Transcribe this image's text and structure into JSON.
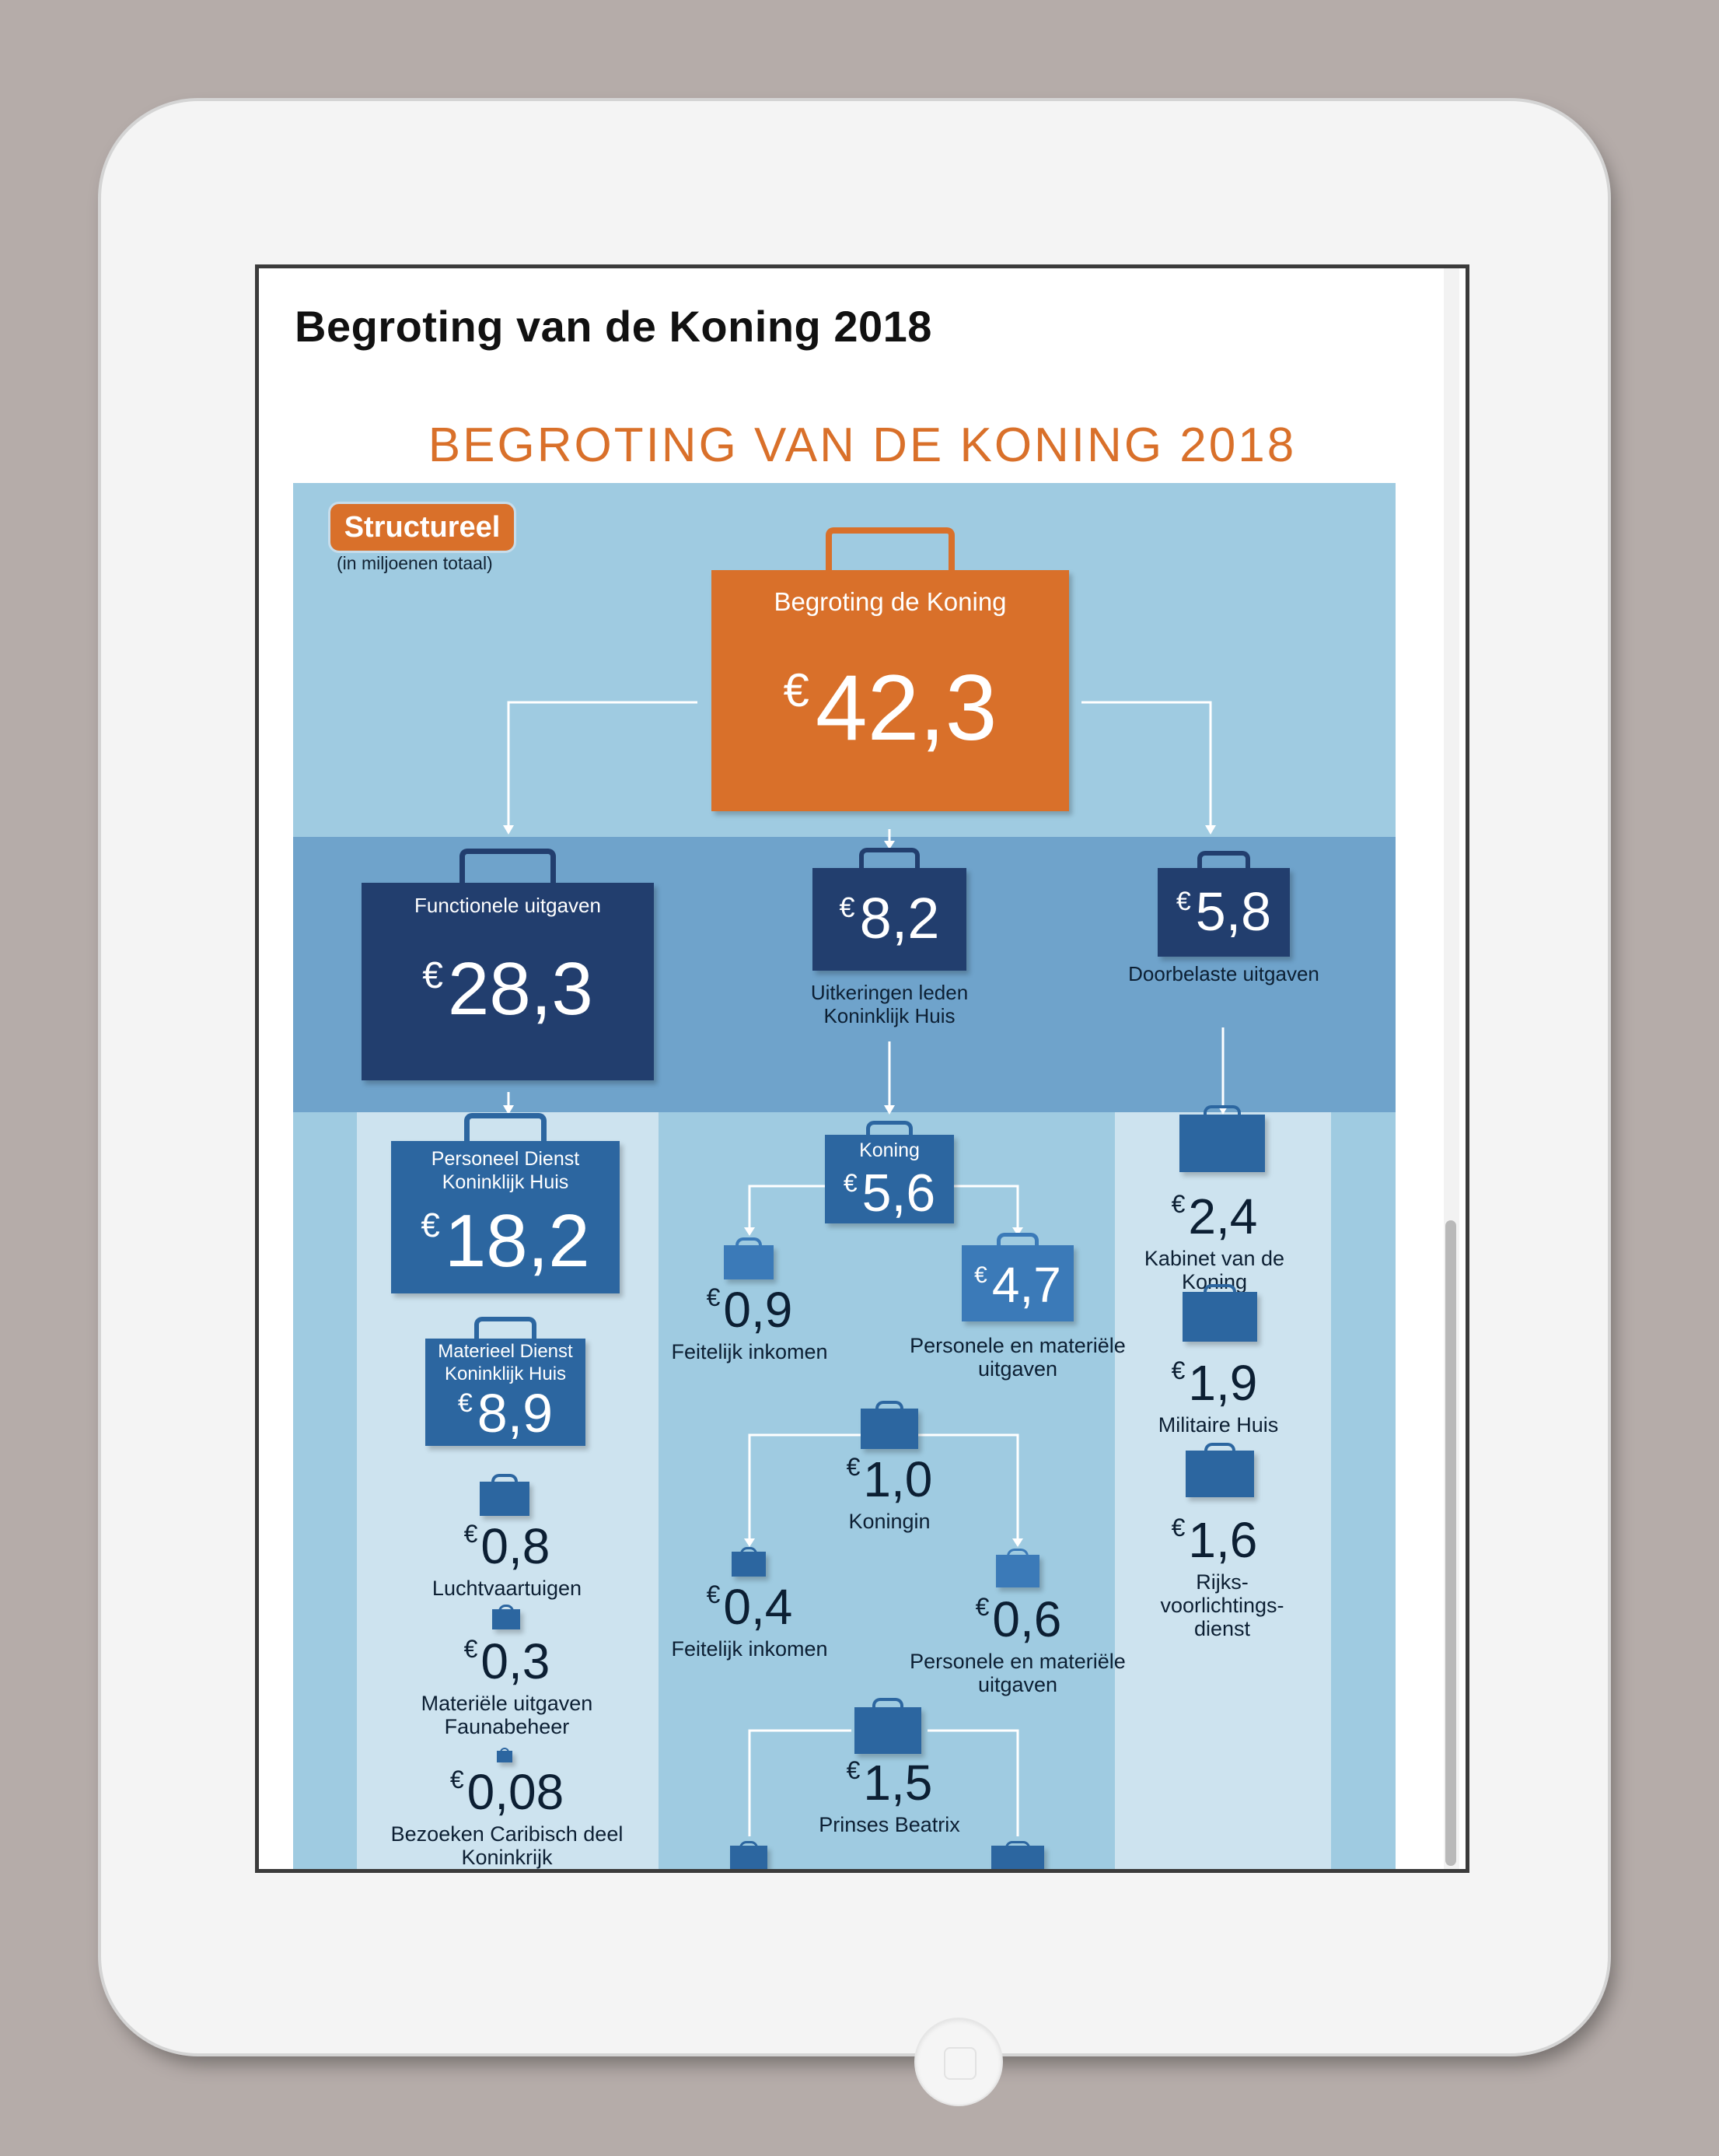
{
  "device": {
    "camera": "camera-dot",
    "home_button": "home-button"
  },
  "page": {
    "title": "Begroting van de Koning 2018"
  },
  "infographic": {
    "title": "BEGROTING VAN DE KONING 2018",
    "badge": "Structureel",
    "badge_sub": "(in miljoenen totaal)",
    "currency": "€",
    "colors": {
      "orange": "#d9702a",
      "navy": "#223e6e",
      "blue": "#2c66a0",
      "light_blue": "#9fcbe1",
      "band_blue": "#6fa3cb"
    },
    "total": {
      "label": "Begroting de Koning",
      "value": "42,3"
    },
    "level1": {
      "functional": {
        "label": "Functionele uitgaven",
        "value": "28,3"
      },
      "benefits": {
        "value": "8,2",
        "label": "Uitkeringen leden Koninklijk Huis"
      },
      "charged": {
        "value": "5,8",
        "label": "Doorbelaste uitgaven"
      }
    },
    "left": {
      "personnel": {
        "label": "Personeel Dienst Koninklijk Huis",
        "value": "18,2"
      },
      "material": {
        "label": "Materieel Dienst Koninklijk Huis",
        "value": "8,9"
      },
      "aircraft": {
        "value": "0,8",
        "label": "Luchtvaartuigen"
      },
      "fauna": {
        "value": "0,3",
        "label": "Materiële uitgaven Faunabeheer"
      },
      "caribbean": {
        "value": "0,08",
        "label": "Bezoeken Caribisch deel Koninkrijk"
      }
    },
    "middle": {
      "king": {
        "label": "Koning",
        "value": "5,6"
      },
      "king_income": {
        "value": "0,9",
        "label": "Feitelijk inkomen"
      },
      "king_expenses": {
        "value": "4,7",
        "label": "Personele en materiële uitgaven"
      },
      "queen": {
        "value": "1,0",
        "label": "Koningin"
      },
      "queen_income": {
        "value": "0,4",
        "label": "Feitelijk inkomen"
      },
      "queen_expenses": {
        "value": "0,6",
        "label": "Personele en materiële uitgaven"
      },
      "beatrix": {
        "value": "1,5",
        "label": "Prinses Beatrix"
      }
    },
    "right": {
      "cabinet": {
        "value": "2,4",
        "label": "Kabinet van de Koning"
      },
      "military": {
        "value": "1,9",
        "label": "Militaire Huis"
      },
      "rvd": {
        "value": "1,6",
        "label": "Rijks- voorlichtings- dienst"
      }
    }
  }
}
